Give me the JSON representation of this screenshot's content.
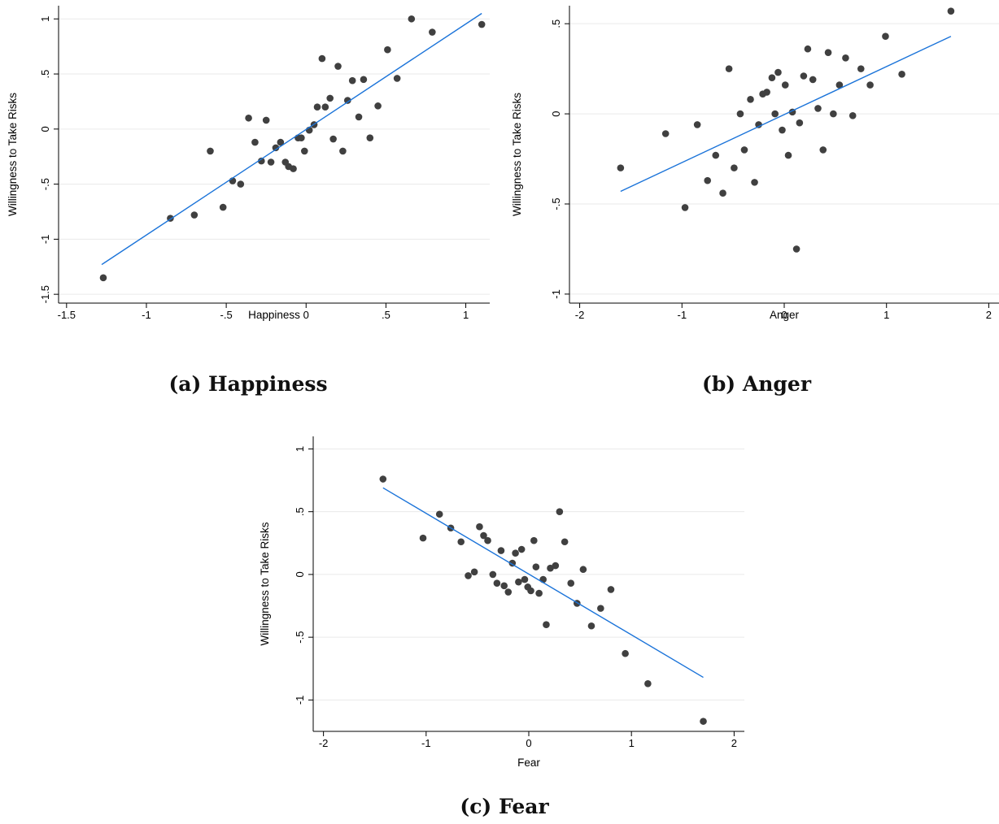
{
  "colors": {
    "points": "#404040",
    "fit_line": "#1a73d9",
    "grid": "#eaeaea",
    "axis": "#000000"
  },
  "chart_data": [
    {
      "type": "scatter",
      "caption_tag": "(a)",
      "caption_text": "Happiness",
      "xlabel": "Happiness",
      "ylabel": "Willingness to Take Risks",
      "xlim": [
        -1.55,
        1.15
      ],
      "ylim": [
        -1.58,
        1.12
      ],
      "xticks": [
        -1.5,
        -1,
        -0.5,
        0,
        0.5,
        1
      ],
      "xtick_labels": [
        "-1.5",
        "-1",
        "-.5",
        "0",
        ".5",
        "1"
      ],
      "yticks": [
        -1.5,
        -1,
        -0.5,
        0,
        0.5,
        1
      ],
      "ytick_labels": [
        "-1.5",
        "-1",
        "-.5",
        "0",
        ".5",
        "1"
      ],
      "grid": true,
      "fit_line": {
        "x": [
          -1.28,
          1.1
        ],
        "y": [
          -1.23,
          1.05
        ]
      },
      "points": [
        [
          -1.27,
          -1.35
        ],
        [
          -0.85,
          -0.81
        ],
        [
          -0.7,
          -0.78
        ],
        [
          -0.6,
          -0.2
        ],
        [
          -0.52,
          -0.71
        ],
        [
          -0.46,
          -0.47
        ],
        [
          -0.41,
          -0.5
        ],
        [
          -0.36,
          0.1
        ],
        [
          -0.32,
          -0.12
        ],
        [
          -0.28,
          -0.29
        ],
        [
          -0.25,
          0.08
        ],
        [
          -0.22,
          -0.3
        ],
        [
          -0.19,
          -0.17
        ],
        [
          -0.16,
          -0.12
        ],
        [
          -0.13,
          -0.3
        ],
        [
          -0.11,
          -0.34
        ],
        [
          -0.08,
          -0.36
        ],
        [
          -0.05,
          -0.08
        ],
        [
          -0.03,
          -0.08
        ],
        [
          -0.01,
          -0.2
        ],
        [
          0.02,
          -0.01
        ],
        [
          0.05,
          0.04
        ],
        [
          0.07,
          0.2
        ],
        [
          0.1,
          0.64
        ],
        [
          0.12,
          0.2
        ],
        [
          0.15,
          0.28
        ],
        [
          0.17,
          -0.09
        ],
        [
          0.2,
          0.57
        ],
        [
          0.23,
          -0.2
        ],
        [
          0.26,
          0.26
        ],
        [
          0.29,
          0.44
        ],
        [
          0.33,
          0.11
        ],
        [
          0.36,
          0.45
        ],
        [
          0.4,
          -0.08
        ],
        [
          0.45,
          0.21
        ],
        [
          0.51,
          0.72
        ],
        [
          0.57,
          0.46
        ],
        [
          0.66,
          1.0
        ],
        [
          0.79,
          0.88
        ],
        [
          1.1,
          0.95
        ]
      ]
    },
    {
      "type": "scatter",
      "caption_tag": "(b)",
      "caption_text": "Anger",
      "xlabel": "Anger",
      "ylabel": "Willingness to Take Risks",
      "xlim": [
        -2.1,
        2.1
      ],
      "ylim": [
        -1.05,
        0.6
      ],
      "xticks": [
        -2,
        -1,
        0,
        1,
        2
      ],
      "xtick_labels": [
        "-2",
        "-1",
        "0",
        "1",
        "2"
      ],
      "yticks": [
        -1,
        -0.5,
        0,
        0.5
      ],
      "ytick_labels": [
        "-1",
        "-.5",
        "0",
        ".5"
      ],
      "grid": true,
      "fit_line": {
        "x": [
          -1.6,
          1.63
        ],
        "y": [
          -0.43,
          0.43
        ]
      },
      "points": [
        [
          -1.6,
          -0.3
        ],
        [
          -1.16,
          -0.11
        ],
        [
          -0.97,
          -0.52
        ],
        [
          -0.85,
          -0.06
        ],
        [
          -0.75,
          -0.37
        ],
        [
          -0.67,
          -0.23
        ],
        [
          -0.6,
          -0.44
        ],
        [
          -0.54,
          0.25
        ],
        [
          -0.49,
          -0.3
        ],
        [
          -0.43,
          0.0
        ],
        [
          -0.39,
          -0.2
        ],
        [
          -0.33,
          0.08
        ],
        [
          -0.29,
          -0.38
        ],
        [
          -0.25,
          -0.06
        ],
        [
          -0.21,
          0.11
        ],
        [
          -0.17,
          0.12
        ],
        [
          -0.12,
          0.2
        ],
        [
          -0.09,
          0.0
        ],
        [
          -0.06,
          0.23
        ],
        [
          -0.02,
          -0.09
        ],
        [
          0.01,
          0.16
        ],
        [
          0.04,
          -0.23
        ],
        [
          0.08,
          0.01
        ],
        [
          0.12,
          -0.75
        ],
        [
          0.15,
          -0.05
        ],
        [
          0.19,
          0.21
        ],
        [
          0.23,
          0.36
        ],
        [
          0.28,
          0.19
        ],
        [
          0.33,
          0.03
        ],
        [
          0.38,
          -0.2
        ],
        [
          0.43,
          0.34
        ],
        [
          0.48,
          0.0
        ],
        [
          0.54,
          0.16
        ],
        [
          0.6,
          0.31
        ],
        [
          0.67,
          -0.01
        ],
        [
          0.75,
          0.25
        ],
        [
          0.84,
          0.16
        ],
        [
          0.99,
          0.43
        ],
        [
          1.15,
          0.22
        ],
        [
          1.63,
          0.57
        ]
      ]
    },
    {
      "type": "scatter",
      "caption_tag": "(c)",
      "caption_text": "Fear",
      "xlabel": "Fear",
      "ylabel": "Willingness to Take Risks",
      "xlim": [
        -2.1,
        2.1
      ],
      "ylim": [
        -1.25,
        1.1
      ],
      "xticks": [
        -2,
        -1,
        0,
        1,
        2
      ],
      "xtick_labels": [
        "-2",
        "-1",
        "0",
        "1",
        "2"
      ],
      "yticks": [
        -1,
        -0.5,
        0,
        0.5,
        1
      ],
      "ytick_labels": [
        "-1",
        "-.5",
        "0",
        ".5",
        "1"
      ],
      "grid": true,
      "fit_line": {
        "x": [
          -1.42,
          1.7
        ],
        "y": [
          0.69,
          -0.82
        ]
      },
      "points": [
        [
          -1.42,
          0.76
        ],
        [
          -1.03,
          0.29
        ],
        [
          -0.87,
          0.48
        ],
        [
          -0.76,
          0.37
        ],
        [
          -0.66,
          0.26
        ],
        [
          -0.59,
          -0.01
        ],
        [
          -0.53,
          0.02
        ],
        [
          -0.48,
          0.38
        ],
        [
          -0.44,
          0.31
        ],
        [
          -0.4,
          0.27
        ],
        [
          -0.35,
          0.0
        ],
        [
          -0.31,
          -0.07
        ],
        [
          -0.27,
          0.19
        ],
        [
          -0.24,
          -0.09
        ],
        [
          -0.2,
          -0.14
        ],
        [
          -0.16,
          0.09
        ],
        [
          -0.13,
          0.17
        ],
        [
          -0.1,
          -0.06
        ],
        [
          -0.07,
          0.2
        ],
        [
          -0.04,
          -0.04
        ],
        [
          -0.01,
          -0.1
        ],
        [
          0.02,
          -0.13
        ],
        [
          0.05,
          0.27
        ],
        [
          0.07,
          0.06
        ],
        [
          0.1,
          -0.15
        ],
        [
          0.14,
          -0.04
        ],
        [
          0.17,
          -0.4
        ],
        [
          0.21,
          0.05
        ],
        [
          0.26,
          0.07
        ],
        [
          0.3,
          0.5
        ],
        [
          0.35,
          0.26
        ],
        [
          0.41,
          -0.07
        ],
        [
          0.47,
          -0.23
        ],
        [
          0.53,
          0.04
        ],
        [
          0.61,
          -0.41
        ],
        [
          0.7,
          -0.27
        ],
        [
          0.8,
          -0.12
        ],
        [
          0.94,
          -0.63
        ],
        [
          1.16,
          -0.87
        ],
        [
          1.7,
          -1.17
        ]
      ]
    }
  ]
}
